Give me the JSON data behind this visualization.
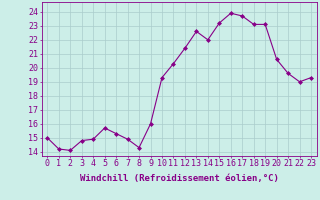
{
  "x": [
    0,
    1,
    2,
    3,
    4,
    5,
    6,
    7,
    8,
    9,
    10,
    11,
    12,
    13,
    14,
    15,
    16,
    17,
    18,
    19,
    20,
    21,
    22,
    23
  ],
  "y": [
    15.0,
    14.2,
    14.1,
    14.8,
    14.9,
    15.7,
    15.3,
    14.9,
    14.3,
    16.0,
    19.3,
    20.3,
    21.4,
    22.6,
    22.0,
    23.2,
    23.9,
    23.7,
    23.1,
    23.1,
    20.6,
    19.6,
    19.0,
    19.3
  ],
  "line_color": "#880088",
  "marker": "D",
  "marker_size": 2.0,
  "bg_color": "#cceee8",
  "grid_color": "#aacccc",
  "xlabel": "Windchill (Refroidissement éolien,°C)",
  "ylabel_ticks": [
    14,
    15,
    16,
    17,
    18,
    19,
    20,
    21,
    22,
    23,
    24
  ],
  "ylim": [
    13.7,
    24.7
  ],
  "xlim": [
    -0.5,
    23.5
  ],
  "label_fontsize": 6.5,
  "tick_fontsize": 6.0
}
